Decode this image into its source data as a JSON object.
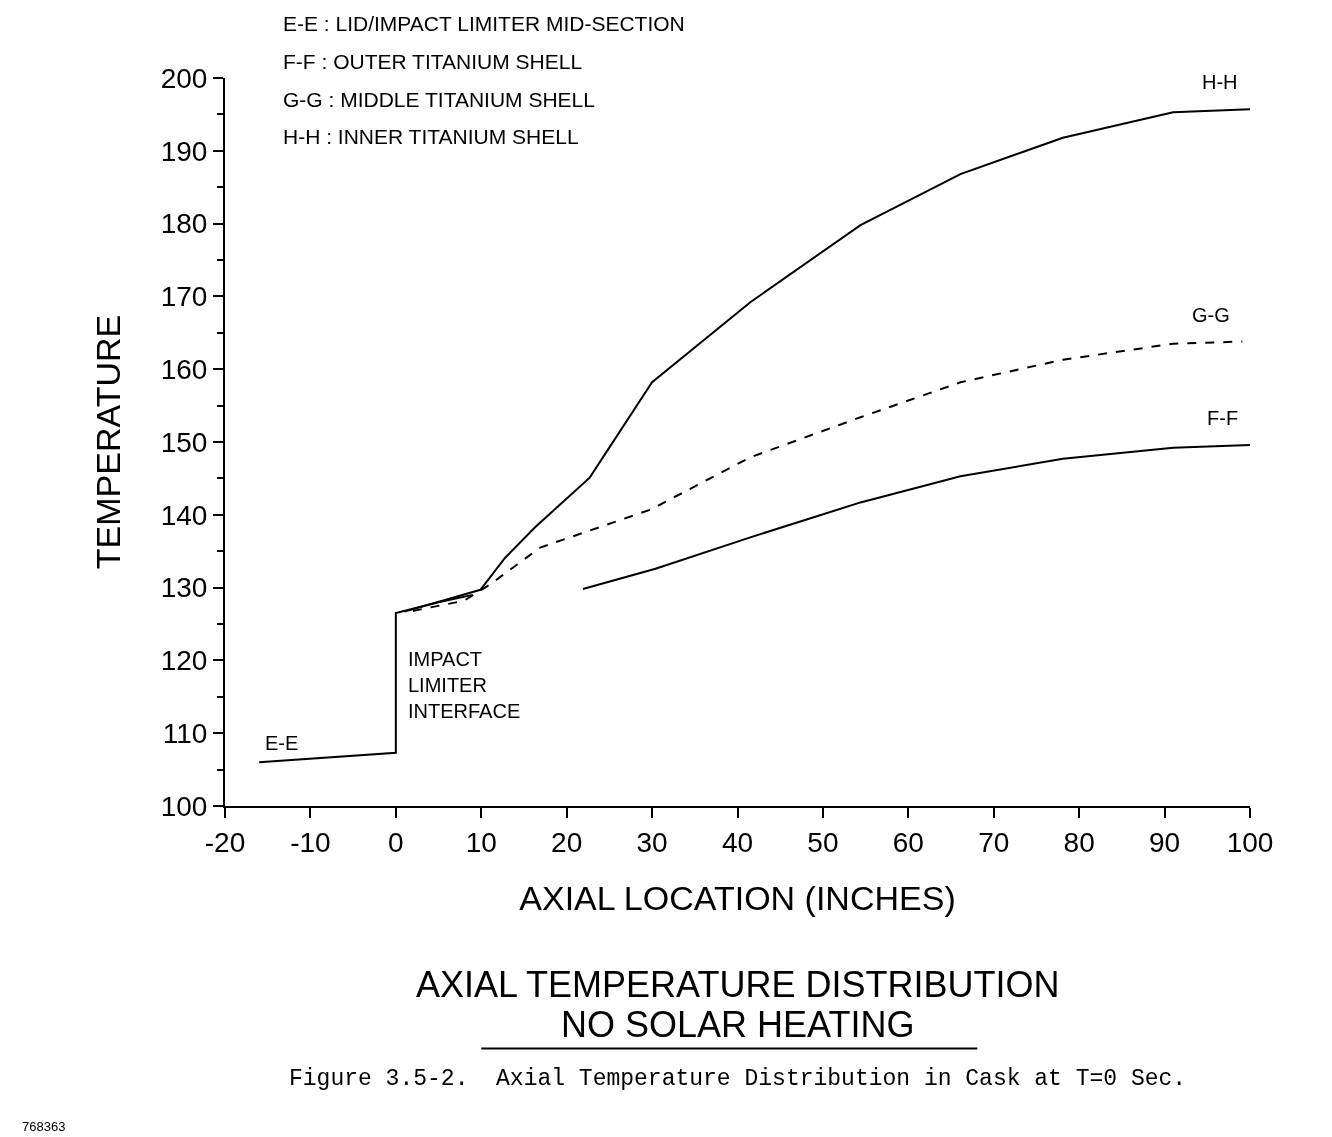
{
  "chart_data": {
    "type": "line",
    "title": "AXIAL TEMPERATURE DISTRIBUTION",
    "subtitle": "NO SOLAR HEATING",
    "xlabel": "AXIAL LOCATION (INCHES)",
    "ylabel": "TEMPERATURE",
    "series": [
      {
        "name": "E-E",
        "color": "#000000",
        "line_style": "solid",
        "x": [
          -16,
          0,
          0,
          5,
          9
        ],
        "values": [
          106,
          107.3,
          126.5,
          128,
          129
        ]
      },
      {
        "name": "F-F",
        "color": "#000000",
        "line_style": "solid",
        "x": [
          21.9,
          30.4,
          41.5,
          54.4,
          66.1,
          78.1,
          91,
          100
        ],
        "values": [
          129.8,
          132.6,
          136.9,
          141.7,
          145.3,
          147.7,
          149.2,
          149.6
        ]
      },
      {
        "name": "G-G",
        "color": "#000000",
        "line_style": "dashed",
        "x": [
          2,
          8,
          11,
          16.9,
          29.8,
          41.5,
          54.4,
          66.1,
          78.1,
          91,
          99.1
        ],
        "values": [
          126.8,
          128.2,
          130.4,
          135.5,
          140.7,
          147.9,
          153.4,
          158.2,
          161.3,
          163.5,
          163.8
        ]
      },
      {
        "name": "H-H",
        "color": "#000000",
        "line_style": "solid",
        "x": [
          1,
          9.9,
          12.8,
          16.3,
          22.7,
          30,
          41.5,
          54.4,
          66.1,
          78.1,
          91,
          100
        ],
        "values": [
          126.7,
          129.7,
          134.1,
          138.3,
          145.1,
          158.2,
          169.2,
          179.8,
          186.8,
          191.8,
          195.3,
          195.7
        ]
      }
    ],
    "xlim": [
      -20,
      100
    ],
    "xticks": [
      -20,
      -10,
      0,
      10,
      20,
      30,
      40,
      50,
      60,
      70,
      80,
      90,
      100
    ],
    "ylim": [
      100,
      200
    ],
    "yticks": [
      100,
      110,
      120,
      130,
      140,
      150,
      160,
      170,
      180,
      190,
      200
    ],
    "grid": false,
    "legend": false,
    "marker": "none",
    "annotations": [
      "E-E : LID/IMPACT LIMITER MID-SECTION",
      "F-F : OUTER TITANIUM SHELL",
      "G-G : MIDDLE TITANIUM SHELL",
      "H-H : INNER TITANIUM SHELL",
      {
        "text": "IMPACT\nLIMITER\nINTERFACE",
        "x": 0,
        "y": 122
      },
      "Figure 3.5-2.  Axial Temperature Distribution in Cask at T=0 Sec.",
      "768363"
    ]
  }
}
